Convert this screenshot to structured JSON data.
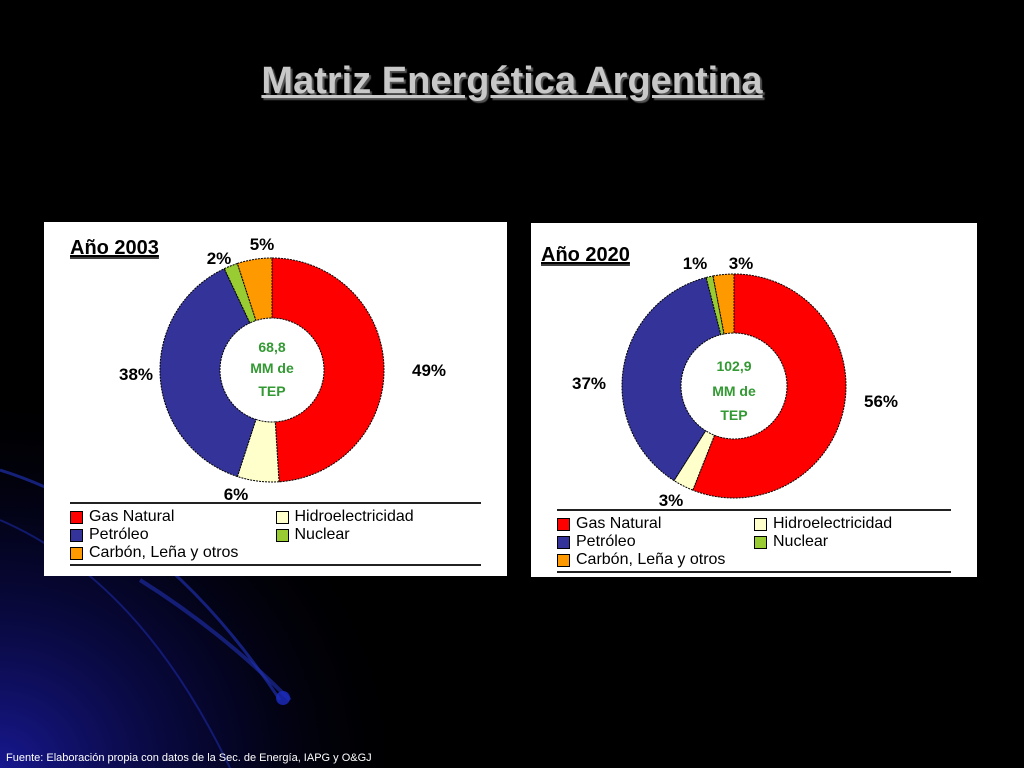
{
  "slide": {
    "title": "Matriz Energética Argentina",
    "footer": "Fuente: Elaboración propia con datos de la Sec. de Energía, IAPG y O&GJ"
  },
  "colors": {
    "gas": "#ff0000",
    "petroleo": "#333399",
    "hidro": "#ffffcc",
    "nuclear": "#99cc33",
    "carbon": "#ff9900",
    "center_text": "#339933"
  },
  "legend": {
    "items": [
      {
        "key": "gas",
        "label": "Gas Natural",
        "color": "#ff0000"
      },
      {
        "key": "hidro",
        "label": "Hidroelectricidad",
        "color": "#ffffcc"
      },
      {
        "key": "petroleo",
        "label": "Petróleo",
        "color": "#333399"
      },
      {
        "key": "nuclear",
        "label": "Nuclear",
        "color": "#99cc33"
      },
      {
        "key": "carbon",
        "label": "Carbón, Leña y otros",
        "color": "#ff9900"
      }
    ]
  },
  "chart_data": [
    {
      "type": "pie",
      "title": "Año 2003",
      "center_text": [
        "68,8",
        "MM de",
        "TEP"
      ],
      "slices": [
        {
          "name": "Gas Natural",
          "value": 49,
          "label": "49%",
          "color": "#ff0000"
        },
        {
          "name": "Hidroelectricidad",
          "value": 6,
          "label": "6%",
          "color": "#ffffcc"
        },
        {
          "name": "Petróleo",
          "value": 38,
          "label": "38%",
          "color": "#333399"
        },
        {
          "name": "Nuclear",
          "value": 2,
          "label": "2%",
          "color": "#99cc33"
        },
        {
          "name": "Carbón, Leña y otros",
          "value": 5,
          "label": "5%",
          "color": "#ff9900"
        }
      ]
    },
    {
      "type": "pie",
      "title": "Año 2020",
      "center_text": [
        "102,9",
        "MM de",
        "TEP"
      ],
      "slices": [
        {
          "name": "Gas Natural",
          "value": 56,
          "label": "56%",
          "color": "#ff0000"
        },
        {
          "name": "Hidroelectricidad",
          "value": 3,
          "label": "3%",
          "color": "#ffffcc"
        },
        {
          "name": "Petróleo",
          "value": 37,
          "label": "37%",
          "color": "#333399"
        },
        {
          "name": "Nuclear",
          "value": 1,
          "label": "1%",
          "color": "#99cc33"
        },
        {
          "name": "Carbón, Leña y otros",
          "value": 3,
          "label": "3%",
          "color": "#ff9900"
        }
      ]
    }
  ]
}
